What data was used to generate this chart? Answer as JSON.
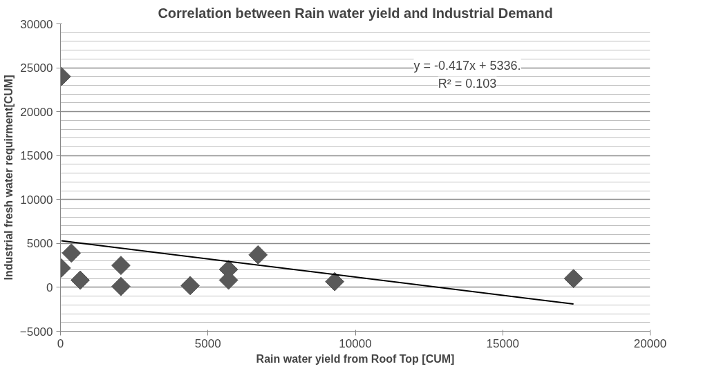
{
  "chart_data": {
    "type": "scatter",
    "title": "Correlation between Rain water yield and Industrial Demand",
    "xlabel": "Rain water yield from Roof Top [CUM]",
    "ylabel": "Industrial fresh water requirment[CUM]",
    "x": [
      30,
      30,
      370,
      670,
      2050,
      2050,
      4400,
      5700,
      5700,
      6700,
      9300,
      17400
    ],
    "series": [
      {
        "color": "#595959",
        "values": [
          24000,
          2200,
          3900,
          820,
          2500,
          100,
          200,
          2030,
          820,
          3700,
          650,
          1000
        ]
      },
      {
        "type": "line",
        "color": "#000000",
        "marker": "none",
        "x": [
          30,
          17400
        ],
        "values": [
          5300,
          -1900
        ]
      }
    ],
    "annotations": [
      "y = -0.417x + 5336.",
      "R² = 0.103"
    ],
    "xlim": [
      0,
      20000
    ],
    "xticks": [
      0,
      5000,
      10000,
      15000,
      20000
    ],
    "ylim": [
      -5000,
      30000
    ],
    "yticks": [
      -5000,
      0,
      5000,
      10000,
      15000,
      20000,
      25000,
      30000
    ],
    "grid": "y",
    "marker": "diamond"
  }
}
